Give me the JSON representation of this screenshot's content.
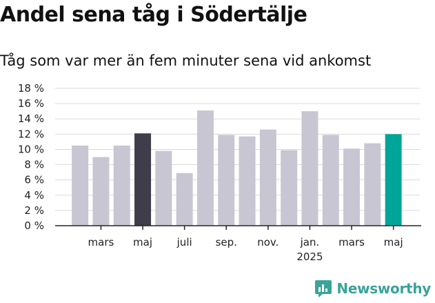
{
  "header": {
    "title": "Andel sena tåg i Södertälje",
    "subtitle": "Tåg som var mer än fem minuter sena vid ankomst"
  },
  "brand": {
    "name": "Newsworthy",
    "icon": "newsworthy-logo-icon",
    "color": "#3aa39a"
  },
  "colors": {
    "default": "#c8c6d3",
    "highlight_dark": "#3f3d4a",
    "highlight_latest": "#00a59a"
  },
  "chart_data": {
    "type": "bar",
    "title": "Andel sena tåg i Södertälje",
    "subtitle": "Tåg som var mer än fem minuter sena vid ankomst",
    "categories": [
      "2024-02",
      "2024-03",
      "2024-04",
      "2024-05",
      "2024-06",
      "2024-07",
      "2024-08",
      "2024-09",
      "2024-10",
      "2024-11",
      "2024-12",
      "2025-01",
      "2025-02",
      "2025-03",
      "2025-04",
      "2025-05"
    ],
    "values": [
      10.5,
      9.0,
      10.5,
      12.1,
      9.8,
      6.9,
      15.1,
      11.9,
      11.7,
      12.6,
      9.9,
      15.0,
      11.9,
      10.1,
      10.8,
      12.0
    ],
    "bar_colors": [
      "#c8c6d3",
      "#c8c6d3",
      "#c8c6d3",
      "#3f3d4a",
      "#c8c6d3",
      "#c8c6d3",
      "#c8c6d3",
      "#c8c6d3",
      "#c8c6d3",
      "#c8c6d3",
      "#c8c6d3",
      "#c8c6d3",
      "#c8c6d3",
      "#c8c6d3",
      "#c8c6d3",
      "#00a59a"
    ],
    "ylim": [
      0,
      18
    ],
    "y_ticks": [
      {
        "value": 0,
        "label": "0 %"
      },
      {
        "value": 2,
        "label": "2 %"
      },
      {
        "value": 4,
        "label": "4 %"
      },
      {
        "value": 6,
        "label": "6 %"
      },
      {
        "value": 8,
        "label": "8 %"
      },
      {
        "value": 10,
        "label": "10 %"
      },
      {
        "value": 12,
        "label": "12 %"
      },
      {
        "value": 14,
        "label": "14 %"
      },
      {
        "value": 16,
        "label": "16 %"
      },
      {
        "value": 18,
        "label": "18 %"
      }
    ],
    "x_ticks": [
      {
        "index": 1,
        "label": "mars"
      },
      {
        "index": 3,
        "label": "maj"
      },
      {
        "index": 5,
        "label": "juli"
      },
      {
        "index": 7,
        "label": "sep."
      },
      {
        "index": 9,
        "label": "nov."
      },
      {
        "index": 11,
        "label": "jan.",
        "sublabel": "2025"
      },
      {
        "index": 13,
        "label": "mars"
      },
      {
        "index": 15,
        "label": "maj"
      }
    ],
    "grid": true,
    "xlabel": "",
    "ylabel": ""
  }
}
